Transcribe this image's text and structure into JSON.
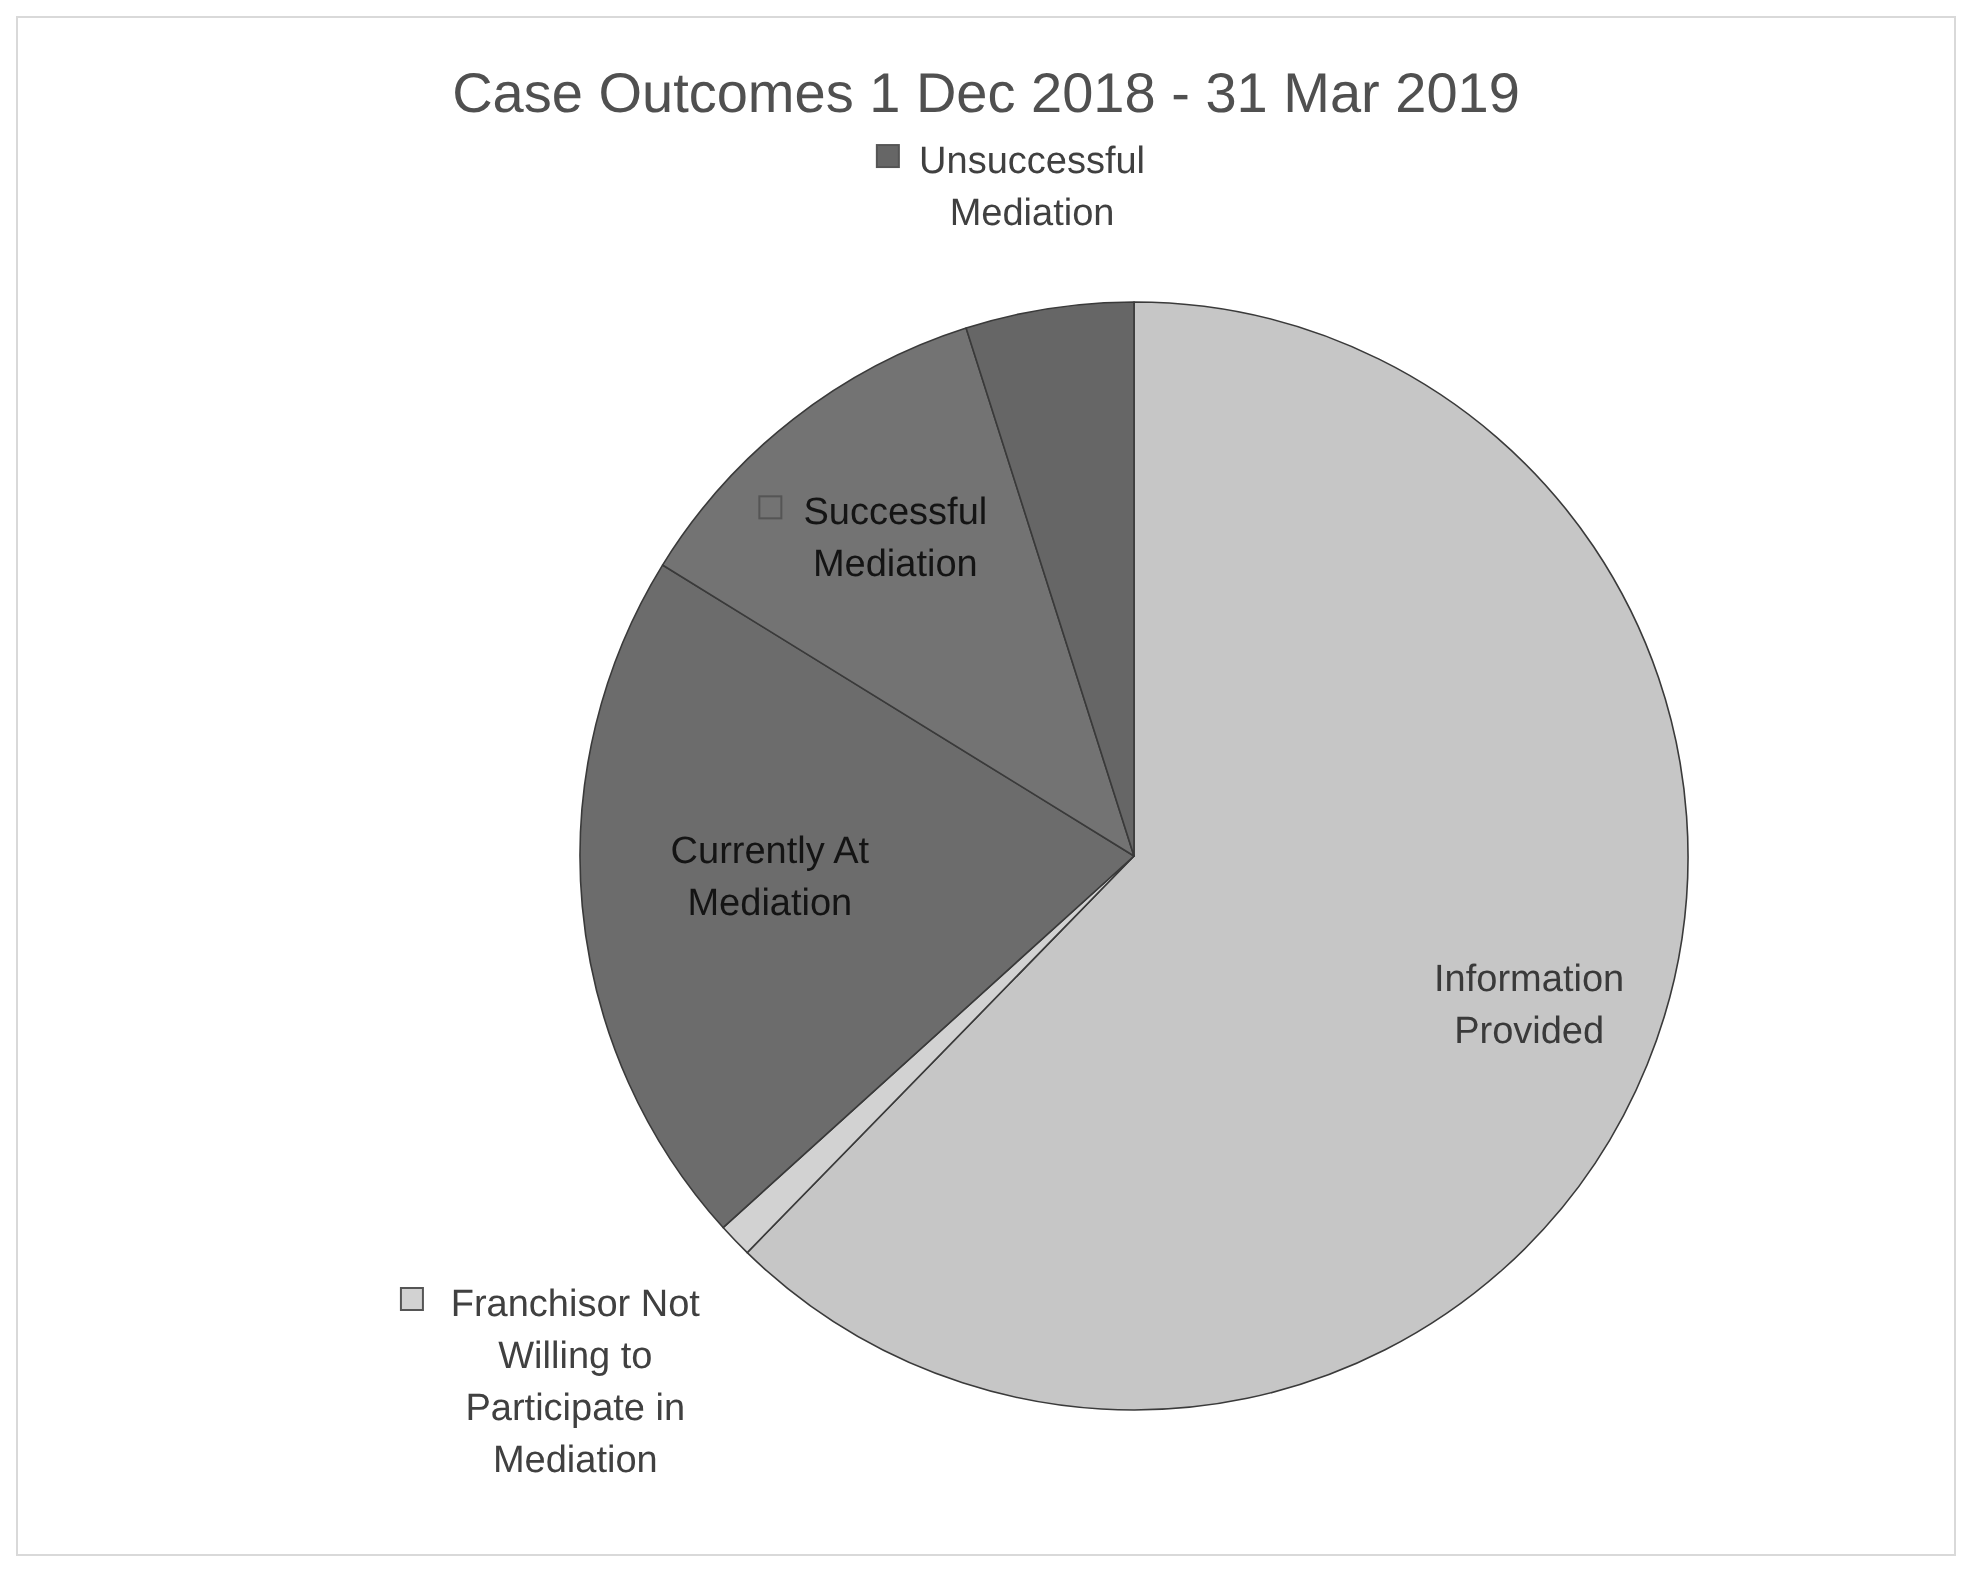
{
  "chart_data": {
    "type": "pie",
    "title": "Case Outcomes 1 Dec 2018 - 31 Mar 2019",
    "categories": [
      "Information Provided",
      "Franchisor Not Willing to Participate in Mediation",
      "Currently At Mediation",
      "Successful Mediation",
      "Unsuccessful Mediation"
    ],
    "values": [
      62.3,
      1,
      20.5,
      11.3,
      4.9
    ],
    "colors": [
      "#c6c6c6",
      "#d2d2d2",
      "#6c6c6c",
      "#737373",
      "#666666"
    ],
    "legend": "left"
  }
}
